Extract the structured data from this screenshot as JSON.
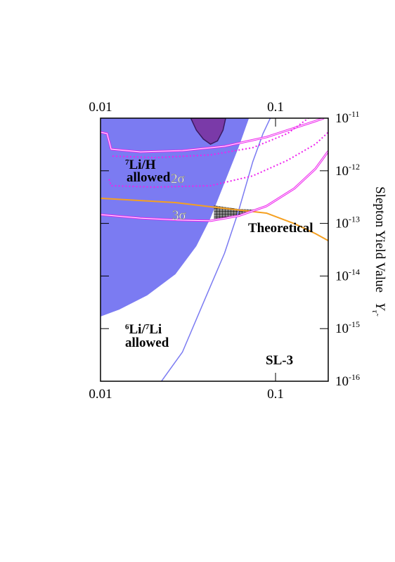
{
  "chart_data": {
    "type": "region-plot",
    "xscale": "log",
    "yscale": "log",
    "xlim": [
      0.01,
      0.2
    ],
    "ylim": [
      1e-16,
      1e-11
    ],
    "xticks": [
      0.01,
      0.1
    ],
    "yticks": [
      {
        "value": 1e-16,
        "label": "10",
        "exponent": "-16"
      },
      {
        "value": 1e-15,
        "label": "10",
        "exponent": "-15"
      },
      {
        "value": 1e-14,
        "label": "10",
        "exponent": "-14"
      },
      {
        "value": 1e-13,
        "label": "10",
        "exponent": "-13"
      },
      {
        "value": 1e-12,
        "label": "10",
        "exponent": "-12"
      },
      {
        "value": 1e-11,
        "label": "10",
        "exponent": "-11"
      }
    ],
    "ylabel": "Slepton Yield Value",
    "ylabel_symbol": "Y",
    "ylabel_subscript": "τ̃",
    "label_li7h": {
      "mass": "7",
      "text": "Li/H",
      "line2": "allowed"
    },
    "label_li6": {
      "mass1": "6",
      "text1": "Li/",
      "mass2": "7",
      "text2": "Li",
      "line2": "allowed"
    },
    "label_2sigma": "2σ",
    "label_3sigma": "3σ",
    "label_theoretical": "Theoretical",
    "label_model": "SL-3",
    "regions": [
      {
        "color": "#7b7bf2",
        "close": "top-left",
        "x": [
          0.0705,
          0.0614,
          0.0511,
          0.0425,
          0.0353,
          0.0268,
          0.0185,
          0.0128,
          0.01
        ],
        "values": [
          1e-11,
          2.75e-12,
          5.9e-13,
          1.26e-13,
          3.7e-14,
          1.08e-14,
          4.3e-15,
          2.3e-15,
          1.7e-15
        ]
      },
      {
        "color": "#7a3aa8",
        "close": "top",
        "x": [
          0.0328,
          0.0353,
          0.0387,
          0.0425,
          0.0466,
          0.0501,
          0.0519
        ],
        "values": [
          1e-11,
          5.9e-12,
          4e-12,
          3.2e-12,
          3.7e-12,
          5.9e-12,
          1e-11
        ]
      },
      {
        "color": "hatch",
        "close": "self",
        "x": [
          0.0445,
          0.0614,
          0.0773,
          0.0614,
          0.0445
        ],
        "values": [
          2.2e-13,
          1.88e-13,
          1.83e-13,
          1.39e-13,
          1.12e-13
        ]
      }
    ],
    "curves": [
      {
        "color": "#7b7bf2",
        "width": 1.5,
        "dash": "none",
        "x": [
          0.0223,
          0.0294,
          0.0387,
          0.0511,
          0.0614,
          0.0741,
          0.0848,
          0.0933
        ],
        "values": [
          1e-16,
          3.6e-16,
          3.1e-15,
          2.7e-14,
          1.7e-13,
          1.48e-12,
          5.1e-12,
          1e-11
        ]
      },
      {
        "color": "#f5a020",
        "width": 2,
        "dash": "none",
        "x": [
          0.01,
          0.0268,
          0.0466,
          0.0887,
          0.128,
          0.169,
          0.2
        ],
        "values": [
          3e-13,
          2.49e-13,
          2e-13,
          1.57e-13,
          9.9e-14,
          6.4e-14,
          4.7e-14
        ]
      },
      {
        "color": "#ee22ee",
        "width": 3,
        "dash": "none",
        "x": [
          0.01,
          0.0169,
          0.0294,
          0.0425,
          0.0614,
          0.0887,
          0.128,
          0.169,
          0.2
        ],
        "values": [
          1.47e-13,
          1.26e-13,
          1.15e-13,
          1.12e-13,
          1.39e-13,
          2.13e-13,
          4.6e-13,
          1.09e-12,
          2.35e-12
        ]
      },
      {
        "color": "#ee22ee",
        "width": 3,
        "dash": "none",
        "x": [
          0.01,
          0.0109,
          0.0115,
          0.0169,
          0.0294,
          0.0511,
          0.0887,
          0.128,
          0.169,
          0.189
        ],
        "values": [
          5.4e-12,
          5.1e-12,
          2.58e-12,
          2.28e-12,
          2.42e-12,
          2.92e-12,
          4.36e-12,
          6.5e-12,
          8.8e-12,
          1e-11
        ]
      },
      {
        "color": "#ee22ee",
        "width": 2,
        "dash": "2 3",
        "x": [
          0.0117,
          0.0203,
          0.0425,
          0.0741,
          0.117,
          0.154
        ],
        "values": [
          1.9e-12,
          1.78e-12,
          2e-12,
          2.75e-12,
          5.1e-12,
          1e-11
        ]
      },
      {
        "color": "#ee22ee",
        "width": 2,
        "dash": "2 3",
        "x": [
          0.0112,
          0.0115,
          0.0203,
          0.0425,
          0.0741,
          0.117,
          0.169,
          0.2
        ],
        "values": [
          6.9e-13,
          5.2e-13,
          4.9e-13,
          5.2e-13,
          8e-13,
          1.58e-12,
          3.2e-12,
          5.4e-12
        ]
      }
    ]
  }
}
